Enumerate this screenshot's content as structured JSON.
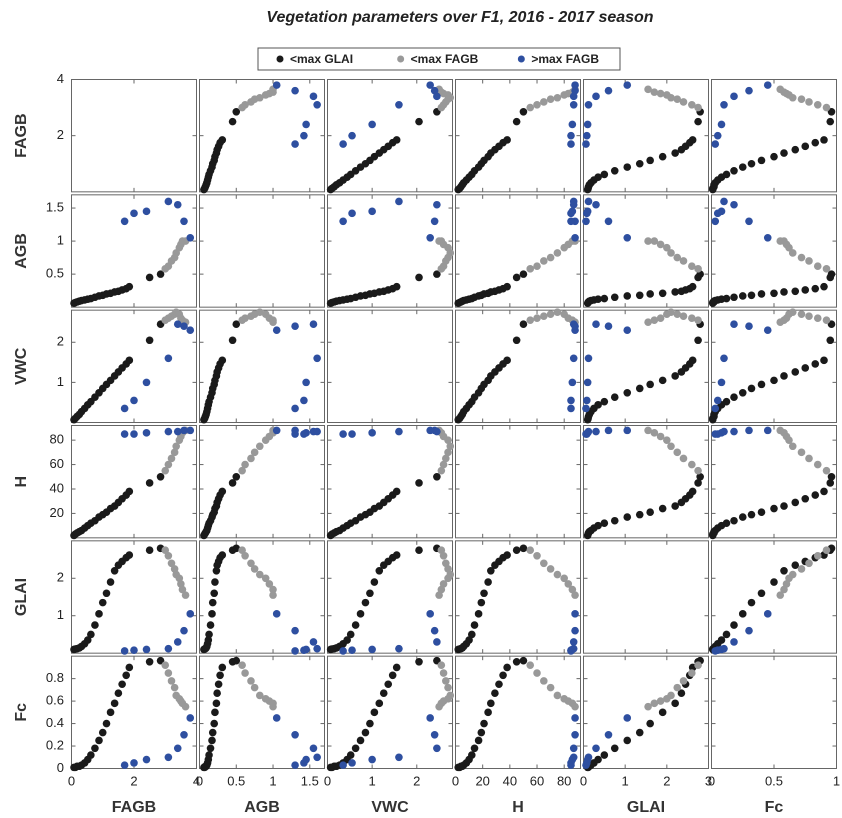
{
  "chart_data": {
    "type": "scatter_matrix",
    "title": "Vegetation parameters over F1, 2016 - 2017 season",
    "variables": [
      {
        "name": "FAGB",
        "lim": [
          0,
          4
        ],
        "xticks": [
          0,
          2,
          4
        ],
        "yticks": [
          2,
          4
        ]
      },
      {
        "name": "AGB",
        "lim": [
          0,
          1.7
        ],
        "xticks": [
          0,
          0.5,
          1,
          1.5
        ],
        "yticks": [
          0.5,
          1,
          1.5
        ]
      },
      {
        "name": "VWC",
        "lim": [
          0,
          2.8
        ],
        "xticks": [
          0,
          1,
          2
        ],
        "yticks": [
          1,
          2
        ]
      },
      {
        "name": "H",
        "lim": [
          0,
          92
        ],
        "xticks": [
          0,
          20,
          40,
          60,
          80
        ],
        "yticks": [
          20,
          40,
          60,
          80
        ]
      },
      {
        "name": "GLAI",
        "lim": [
          0,
          3
        ],
        "xticks": [
          0,
          1,
          2,
          3
        ],
        "yticks": [
          1,
          2
        ]
      },
      {
        "name": "Fc",
        "lim": [
          0,
          1
        ],
        "xticks": [
          0,
          0.5,
          1
        ],
        "yticks": [
          0,
          0.2,
          0.4,
          0.6,
          0.8
        ]
      }
    ],
    "legend": "top",
    "series": [
      {
        "name": "<max GLAI",
        "color": "#1a1a1a",
        "values": [
          [
            0.08,
            0.12,
            0.18,
            0.25,
            0.32,
            0.42,
            0.52,
            0.62,
            0.75,
            0.88,
            1.0,
            1.12,
            1.25,
            1.38,
            1.5,
            1.62,
            1.75,
            1.85,
            2.5,
            2.85
          ],
          [
            0.06,
            0.07,
            0.08,
            0.09,
            0.1,
            0.11,
            0.12,
            0.13,
            0.15,
            0.17,
            0.18,
            0.2,
            0.21,
            0.23,
            0.24,
            0.26,
            0.28,
            0.31,
            0.45,
            0.5
          ],
          [
            0.07,
            0.1,
            0.15,
            0.2,
            0.27,
            0.35,
            0.44,
            0.52,
            0.63,
            0.74,
            0.85,
            0.95,
            1.05,
            1.16,
            1.26,
            1.36,
            1.46,
            1.55,
            2.05,
            2.45
          ],
          [
            2,
            3,
            4,
            5,
            6,
            8,
            10,
            12,
            14,
            17,
            19,
            21,
            24,
            26,
            29,
            32,
            35,
            38,
            45,
            50
          ],
          [
            0.1,
            0.11,
            0.12,
            0.14,
            0.18,
            0.25,
            0.35,
            0.5,
            0.75,
            1.05,
            1.35,
            1.6,
            1.9,
            2.2,
            2.35,
            2.45,
            2.55,
            2.62,
            2.75,
            2.8
          ],
          [
            0.01,
            0.01,
            0.02,
            0.02,
            0.03,
            0.05,
            0.08,
            0.12,
            0.18,
            0.25,
            0.32,
            0.4,
            0.5,
            0.58,
            0.67,
            0.75,
            0.83,
            0.9,
            0.95,
            0.96
          ]
        ]
      },
      {
        "name": "<max FAGB",
        "color": "#999999",
        "values": [
          [
            3.0,
            3.1,
            3.2,
            3.3,
            3.35,
            3.45,
            3.5,
            3.55,
            3.65
          ],
          [
            0.58,
            0.62,
            0.7,
            0.75,
            0.82,
            0.9,
            0.95,
            1.0,
            1.0
          ],
          [
            2.55,
            2.6,
            2.65,
            2.7,
            2.75,
            2.7,
            2.6,
            2.55,
            2.5
          ],
          [
            55,
            60,
            65,
            70,
            75,
            80,
            83,
            86,
            88
          ],
          [
            2.75,
            2.6,
            2.4,
            2.25,
            2.1,
            2.0,
            1.85,
            1.7,
            1.55
          ],
          [
            0.92,
            0.85,
            0.78,
            0.72,
            0.65,
            0.62,
            0.6,
            0.58,
            0.55
          ]
        ]
      },
      {
        "name": ">max FAGB",
        "color": "#2e4fa0",
        "values": [
          [
            3.8,
            3.6,
            3.4,
            3.1,
            2.4,
            2.0,
            1.7
          ],
          [
            1.05,
            1.3,
            1.55,
            1.6,
            1.45,
            1.42,
            1.3
          ],
          [
            2.3,
            2.4,
            2.45,
            1.6,
            1.0,
            0.55,
            0.35
          ],
          [
            88,
            88,
            87,
            87,
            86,
            85,
            85
          ],
          [
            1.05,
            0.6,
            0.3,
            0.12,
            0.1,
            0.08,
            0.06
          ],
          [
            0.45,
            0.3,
            0.18,
            0.1,
            0.08,
            0.05,
            0.03
          ]
        ]
      }
    ]
  }
}
